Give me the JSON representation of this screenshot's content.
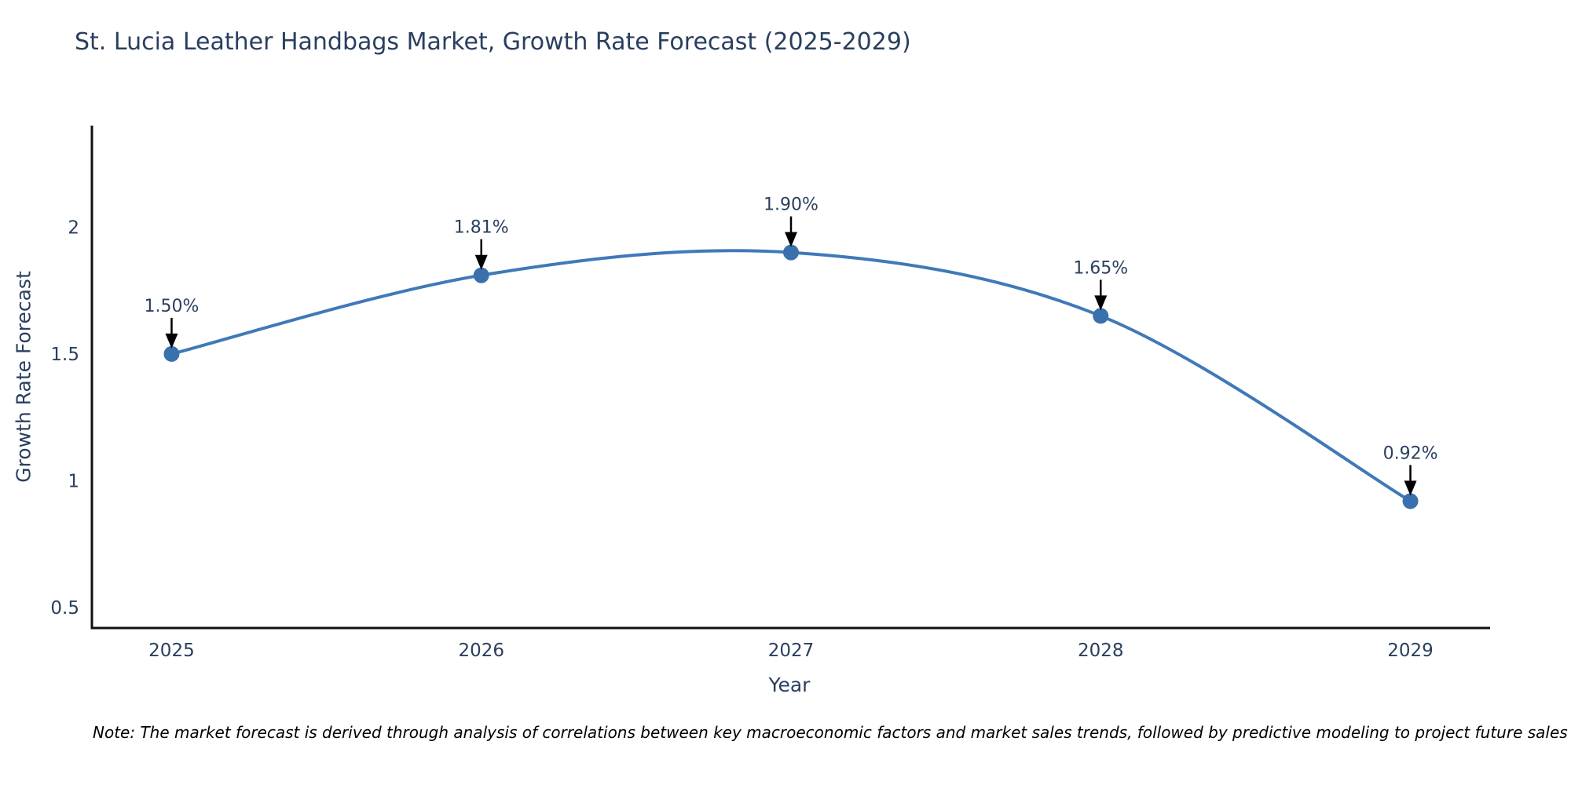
{
  "title": "St. Lucia Leather Handbags Market, Growth Rate Forecast (2025-2029)",
  "note": "Note: The market forecast is derived through analysis of correlations between key macroeconomic factors and market sales trends, followed by predictive modeling to project future sales",
  "colors": {
    "line": "#4079b8",
    "marker": "#3a71ad",
    "text": "#2a3f5f",
    "axis": "#111111",
    "arrow": "#000000",
    "background": "#ffffff"
  },
  "chart_data": {
    "type": "line",
    "title": "St. Lucia Leather Handbags Market, Growth Rate Forecast (2025-2029)",
    "xlabel": "Year",
    "ylabel": "Growth Rate Forecast",
    "x": [
      2025,
      2026,
      2027,
      2028,
      2029
    ],
    "values": [
      1.5,
      1.81,
      1.9,
      1.65,
      0.92
    ],
    "point_labels": [
      "1.50%",
      "1.81%",
      "1.90%",
      "1.65%",
      "0.92%"
    ],
    "xtick_labels": [
      "2025",
      "2026",
      "2027",
      "2028",
      "2029"
    ],
    "yticks": [
      0.5,
      1,
      1.5,
      2
    ],
    "ytick_labels": [
      "0.5",
      "1",
      "1.5",
      "2"
    ],
    "ylim": [
      0.42,
      2.4
    ],
    "grid": false,
    "legend": "none",
    "line_shape": "spline",
    "annotations": "value labels with down arrows above each point"
  }
}
